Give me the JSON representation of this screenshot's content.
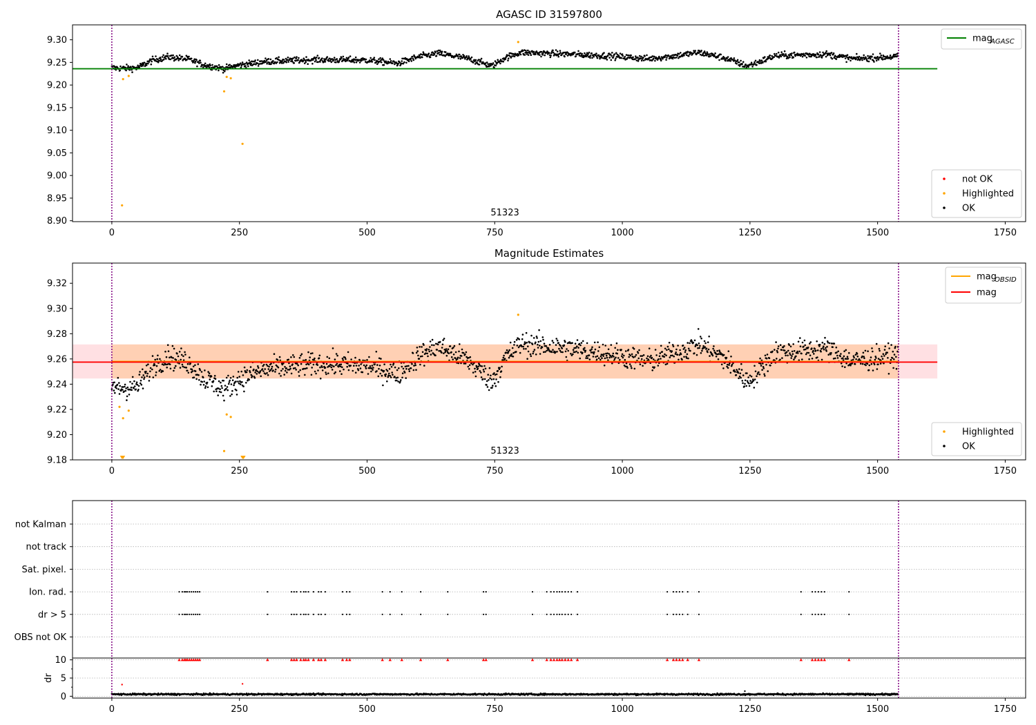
{
  "chart_data": [
    {
      "type": "scatter",
      "title": "AGASC ID 31597800",
      "xlim": [
        -77,
        1790
      ],
      "ylim": [
        8.898,
        9.333
      ],
      "xticks": [
        0,
        250,
        500,
        750,
        1000,
        1250,
        1500,
        1750
      ],
      "yticks": [
        "8.90",
        "8.95",
        "9.00",
        "9.05",
        "9.10",
        "9.15",
        "9.20",
        "9.25",
        "9.30"
      ],
      "colors": {
        "ok": "#000000",
        "highlighted": "#ffa500",
        "not_ok": "#ff0000",
        "mag_agasc": "#008000",
        "obsid_boundary": "#800080"
      },
      "obsid_boundaries": [
        0,
        1541
      ],
      "obsid_label": {
        "text": "51323",
        "x": 770
      },
      "mag_agasc": {
        "value": 9.236,
        "x_range": [
          -77,
          1617
        ]
      },
      "legend_lines": [
        {
          "label": "mag",
          "subscript": "AGASC"
        }
      ],
      "legend_markers": [
        {
          "label": "not OK",
          "color": "#ff0000"
        },
        {
          "label": "Highlighted",
          "color": "#ffa500"
        },
        {
          "label": "OK",
          "color": "#000000"
        }
      ],
      "highlighted_points": [
        {
          "x": 20,
          "y": 8.934
        },
        {
          "x": 22,
          "y": 9.213
        },
        {
          "x": 33,
          "y": 9.22
        },
        {
          "x": 220,
          "y": 9.186
        },
        {
          "x": 225,
          "y": 9.218
        },
        {
          "x": 233,
          "y": 9.215
        },
        {
          "x": 256,
          "y": 9.07
        },
        {
          "x": 796,
          "y": 9.295
        }
      ],
      "ok_trend": {
        "n": 1541,
        "x": [
          0,
          20,
          50,
          80,
          110,
          150,
          180,
          220,
          250,
          300,
          400,
          500,
          560,
          600,
          640,
          700,
          745,
          770,
          800,
          900,
          980,
          1050,
          1100,
          1150,
          1200,
          1245,
          1270,
          1300,
          1400,
          1450,
          1541
        ],
        "y": [
          9.238,
          9.237,
          9.238,
          9.255,
          9.262,
          9.257,
          9.245,
          9.236,
          9.244,
          9.252,
          9.256,
          9.255,
          9.248,
          9.262,
          9.27,
          9.258,
          9.242,
          9.26,
          9.272,
          9.268,
          9.264,
          9.258,
          9.264,
          9.272,
          9.26,
          9.242,
          9.252,
          9.265,
          9.268,
          9.258,
          9.263
        ],
        "spread": 0.007
      }
    },
    {
      "type": "scatter",
      "title": "Magnitude Estimates",
      "xlim": [
        -77,
        1790
      ],
      "ylim": [
        9.18,
        9.336
      ],
      "xticks": [
        0,
        250,
        500,
        750,
        1000,
        1250,
        1500,
        1750
      ],
      "yticks": [
        "9.18",
        "9.20",
        "9.22",
        "9.24",
        "9.26",
        "9.28",
        "9.30",
        "9.32"
      ],
      "colors": {
        "ok": "#000000",
        "highlighted": "#ffa500",
        "mag_obsid": "#ffa500",
        "mag": "#ff0000",
        "band_obsid": "#ffcba4",
        "band_mag": "#ffd5da",
        "obsid_boundary": "#800080"
      },
      "obsid_boundaries": [
        0,
        1541
      ],
      "obsid_label": {
        "text": "51323",
        "x": 770
      },
      "mag_obsid": {
        "value": 9.258,
        "band": [
          9.2445,
          9.2715
        ],
        "x_range": [
          0,
          1541
        ]
      },
      "mag": {
        "value": 9.2575,
        "band": [
          9.2445,
          9.2715
        ],
        "x_range": [
          -77,
          1617
        ]
      },
      "legend_lines": [
        {
          "label": "mag",
          "subscript": "OBSID",
          "color": "#ffa500"
        },
        {
          "label": "mag",
          "subscript": "",
          "color": "#ff0000"
        }
      ],
      "legend_markers": [
        {
          "label": "Highlighted",
          "color": "#ffa500"
        },
        {
          "label": "OK",
          "color": "#000000"
        }
      ],
      "highlighted_points": [
        {
          "x": 22,
          "y": 9.213
        },
        {
          "x": 33,
          "y": 9.219
        },
        {
          "x": 220,
          "y": 9.187
        },
        {
          "x": 225,
          "y": 9.216
        },
        {
          "x": 233,
          "y": 9.214
        },
        {
          "x": 796,
          "y": 9.295
        },
        {
          "x": 15,
          "y": 9.222
        }
      ],
      "clipped_points": [
        {
          "x": 20
        },
        {
          "x": 22
        },
        {
          "x": 256
        },
        {
          "x": 258
        }
      ],
      "ok_trend": {
        "n": 1541,
        "x": [
          0,
          20,
          50,
          80,
          110,
          150,
          180,
          220,
          250,
          300,
          400,
          500,
          560,
          600,
          640,
          700,
          745,
          770,
          800,
          900,
          980,
          1050,
          1100,
          1150,
          1200,
          1245,
          1270,
          1300,
          1400,
          1450,
          1541
        ],
        "y": [
          9.238,
          9.237,
          9.238,
          9.255,
          9.262,
          9.257,
          9.245,
          9.236,
          9.244,
          9.252,
          9.256,
          9.255,
          9.248,
          9.262,
          9.27,
          9.258,
          9.242,
          9.26,
          9.272,
          9.268,
          9.264,
          9.258,
          9.264,
          9.272,
          9.26,
          9.242,
          9.252,
          9.265,
          9.268,
          9.258,
          9.263
        ],
        "spread": 0.009
      }
    },
    {
      "type": "scatter",
      "title": "",
      "xlim": [
        -77,
        1790
      ],
      "xticks": [
        0,
        250,
        500,
        750,
        1000,
        1250,
        1500,
        1750
      ],
      "flag_categories": [
        "not Kalman",
        "not track",
        "Sat. pixel.",
        "Ion. rad.",
        "dr > 5",
        "OBS not OK"
      ],
      "flagged_x": [
        132,
        138,
        142,
        145,
        148,
        152,
        156,
        160,
        164,
        168,
        172,
        305,
        352,
        357,
        362,
        370,
        376,
        380,
        385,
        395,
        405,
        410,
        418,
        452,
        460,
        466,
        530,
        545,
        568,
        605,
        658,
        728,
        733,
        824,
        852,
        860,
        866,
        872,
        877,
        882,
        888,
        894,
        900,
        912,
        1088,
        1100,
        1106,
        1112,
        1118,
        1128,
        1150,
        1350,
        1372,
        1378,
        1384,
        1390,
        1396,
        1444
      ],
      "dr": {
        "ylim": [
          -0.5,
          10.5
        ],
        "yticks": [
          "0",
          "5",
          "10"
        ],
        "ylabel": "dr",
        "cap": 10,
        "baseline_mean": 0.55,
        "baseline_spread": 0.35,
        "outliers": [
          {
            "x": 20,
            "y": 3.2
          },
          {
            "x": 256,
            "y": 3.4
          },
          {
            "x": 1240,
            "y": 1.4
          }
        ]
      },
      "colors": {
        "points": "#000000",
        "capped": "#ff0000",
        "obsid_boundary": "#800080",
        "grid": "#b0b0b0"
      },
      "obsid_boundaries": [
        0,
        1541
      ]
    }
  ]
}
